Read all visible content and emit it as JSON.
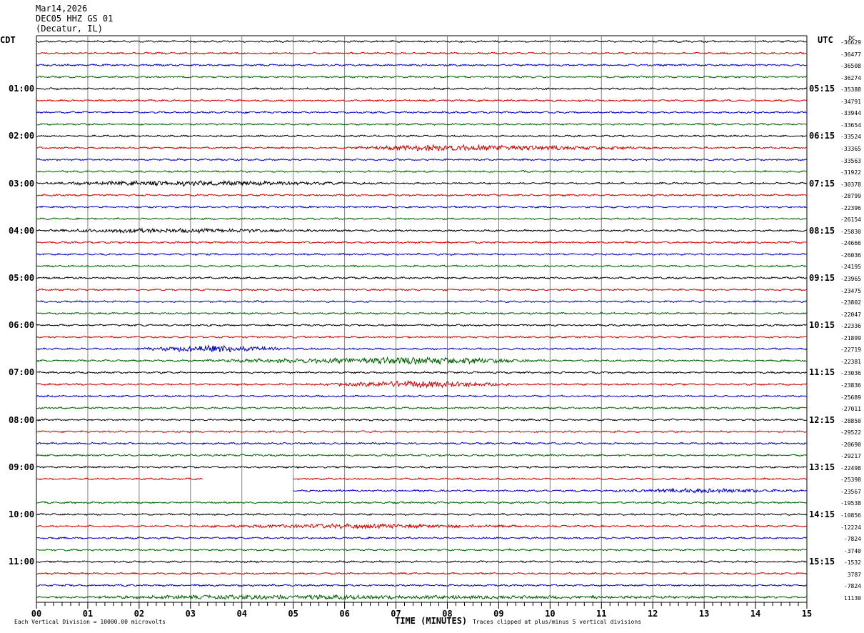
{
  "header": {
    "date": "Mar14,2026",
    "station": "DEC05 HHZ GS 01",
    "location": "(Decatur, IL)"
  },
  "left_tz": "CDT",
  "right_tz": "UTC",
  "dc_label": "DC",
  "footer": {
    "left": "Each Vertical Division = 10000.00 microvolts",
    "xlabel": "TIME (MINUTES)",
    "right": "Traces clipped at plus/minus 5 vertical divisions"
  },
  "colors": {
    "trace_cycle": [
      "#000000",
      "#d40000",
      "#0000c8",
      "#006400"
    ],
    "grid": "#808080"
  },
  "chart_data": {
    "type": "line",
    "title": "Mar14,2026 DEC05 HHZ GS 01 (Decatur, IL)",
    "xlabel": "TIME (MINUTES)",
    "ylabel": "",
    "xlim": [
      0,
      15
    ],
    "x_ticks": [
      "00",
      "01",
      "02",
      "03",
      "04",
      "05",
      "06",
      "07",
      "08",
      "09",
      "10",
      "11",
      "12",
      "13",
      "14",
      "15"
    ],
    "trace_minutes": 15,
    "n_traces": 48,
    "left_hour_labels": [
      "01:00",
      "02:00",
      "03:00",
      "04:00",
      "05:00",
      "06:00",
      "07:00",
      "08:00",
      "09:00",
      "10:00",
      "11:00"
    ],
    "right_hour_labels": [
      "05:15",
      "06:15",
      "07:15",
      "08:15",
      "09:15",
      "10:15",
      "11:15",
      "12:15",
      "13:15",
      "14:15",
      "15:15"
    ],
    "dc_offsets": [
      "-36629",
      "-36477",
      "-36508",
      "-36274",
      "-35388",
      "-34791",
      "-33944",
      "-33654",
      "-33524",
      "-33365",
      "-33563",
      "-31922",
      "-30378",
      "-28799",
      "-22396",
      "-26154",
      "-25830",
      "-24666",
      "-26036",
      "-24195",
      "-23965",
      "-23475",
      "-23802",
      "-22047",
      "-22336",
      "-21899",
      "-22719",
      "-22381",
      "-23036",
      "-23836",
      "-25689",
      "-27011",
      "-28850",
      "-29522",
      "-20690",
      "-29217",
      "-22498",
      "-25398",
      "-23567",
      "-19538",
      "-10856",
      "-12224",
      "-7824",
      "-3740",
      "-1532",
      "3787",
      "-7824",
      "11130"
    ],
    "events": [
      {
        "trace": 9,
        "start_min": 6.0,
        "end_min": 12.5,
        "peak_min": 7.8,
        "amplitude": 4
      },
      {
        "trace": 12,
        "start_min": 0.0,
        "end_min": 7.0,
        "peak_min": 2.5,
        "amplitude": 3
      },
      {
        "trace": 16,
        "start_min": 0.0,
        "end_min": 6.5,
        "peak_min": 1.8,
        "amplitude": 2.5
      },
      {
        "trace": 26,
        "start_min": 1.8,
        "end_min": 5.0,
        "peak_min": 3.6,
        "amplitude": 4.5
      },
      {
        "trace": 27,
        "start_min": 3.0,
        "end_min": 10.0,
        "peak_min": 7.7,
        "amplitude": 5
      },
      {
        "trace": 29,
        "start_min": 5.5,
        "end_min": 9.5,
        "peak_min": 7.3,
        "amplitude": 4.5
      },
      {
        "trace": 38,
        "start_min": 11.0,
        "end_min": 15.0,
        "peak_min": 12.8,
        "amplitude": 2.5
      },
      {
        "trace": 41,
        "start_min": 3.0,
        "end_min": 10.0,
        "peak_min": 6.0,
        "amplitude": 2.5
      },
      {
        "trace": 47,
        "start_min": 0.0,
        "end_min": 15.0,
        "peak_min": 4.5,
        "amplitude": 2.5
      }
    ],
    "gaps": [
      {
        "trace": 37,
        "start_min": 3.25,
        "end_min": 5.0
      },
      {
        "trace": 38,
        "start_min": 0.0,
        "end_min": 5.0
      }
    ]
  }
}
